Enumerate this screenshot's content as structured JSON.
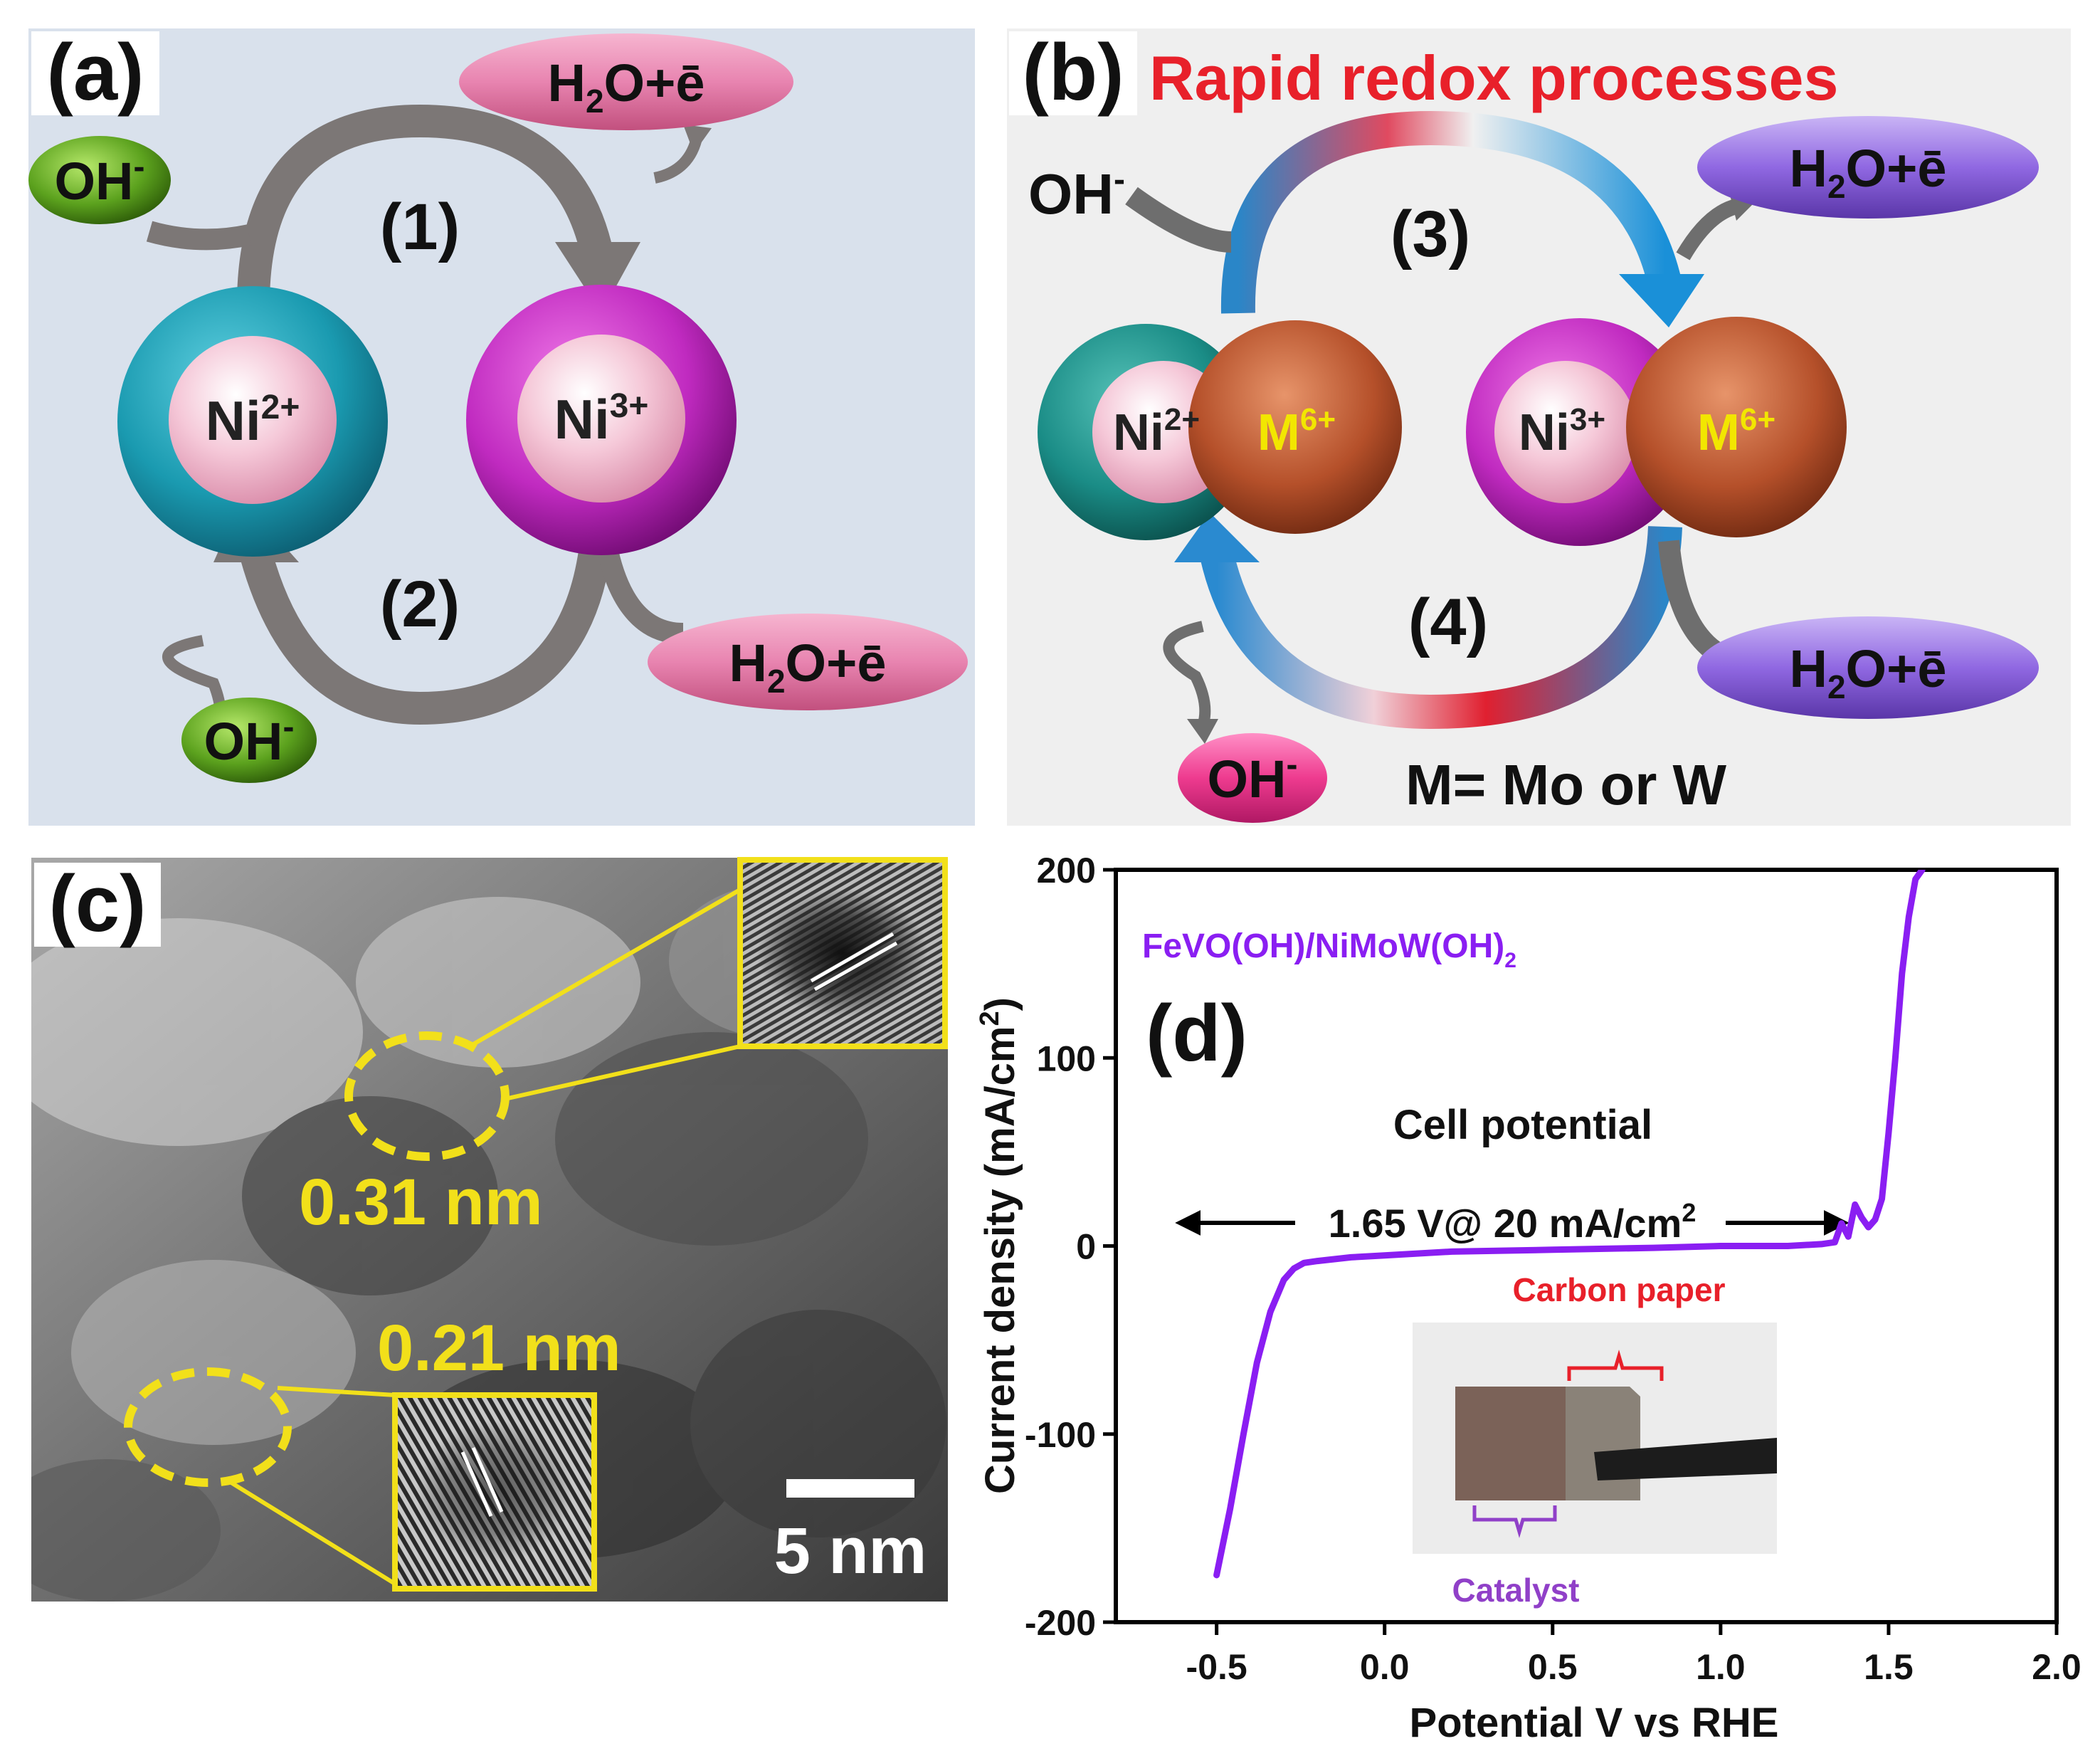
{
  "panel_a": {
    "label": "(a)",
    "ni2": {
      "el": "Ni",
      "charge": "2+"
    },
    "ni3": {
      "el": "Ni",
      "charge": "3+"
    },
    "step1": "(1)",
    "step2": "(2)",
    "oh_top": {
      "base": "OH",
      "sup": "-"
    },
    "oh_bottom": {
      "base": "OH",
      "sup": "-"
    },
    "h2o_top": {
      "pre": "H",
      "sub": "2",
      "post": "O+ē"
    },
    "h2o_bottom": {
      "pre": "H",
      "sub": "2",
      "post": "O+ē"
    }
  },
  "panel_b": {
    "label": "(b)",
    "title": "Rapid redox processes",
    "ni2": {
      "el": "Ni",
      "charge": "2+"
    },
    "ni3": {
      "el": "Ni",
      "charge": "3+"
    },
    "m_left": {
      "el": "M",
      "charge": "6+"
    },
    "m_right": {
      "el": "M",
      "charge": "6+"
    },
    "step3": "(3)",
    "step4": "(4)",
    "oh_top": {
      "base": "OH",
      "sup": "-"
    },
    "oh_bottom": {
      "base": "OH",
      "sup": "-"
    },
    "h2o_top": {
      "pre": "H",
      "sub": "2",
      "post": "O+ē"
    },
    "h2o_bottom": {
      "pre": "H",
      "sub": "2",
      "post": "O+ē"
    },
    "note": "M= Mo or W"
  },
  "panel_c": {
    "label": "(c)",
    "spacing_top": "0.31 nm",
    "spacing_bottom": "0.21 nm",
    "scale_bar": "5 nm"
  },
  "chart_data": {
    "type": "line",
    "panel_label": "(d)",
    "series_name": {
      "pre": "FeVO(OH)/NiMoW(OH)",
      "sub": "2"
    },
    "series_color": "#8a1ef2",
    "xlabel": "Potential V vs RHE",
    "ylabel": {
      "pre": "Current density (mA/cm",
      "sup": "2",
      "post": ")"
    },
    "xlim": [
      -0.8,
      2.0
    ],
    "ylim": [
      -200,
      200
    ],
    "xticks": [
      -0.5,
      0.0,
      0.5,
      1.0,
      1.5,
      2.0
    ],
    "xtick_labels": [
      "-0.5",
      "0.0",
      "0.5",
      "1.0",
      "1.5",
      "2.0"
    ],
    "yticks": [
      -200,
      -100,
      0,
      100,
      200
    ],
    "ytick_labels": [
      "-200",
      "-100",
      "0",
      "100",
      "200"
    ],
    "x": [
      -0.5,
      -0.46,
      -0.42,
      -0.38,
      -0.34,
      -0.3,
      -0.27,
      -0.24,
      -0.2,
      -0.1,
      0.0,
      0.2,
      0.5,
      0.8,
      1.0,
      1.2,
      1.3,
      1.34,
      1.36,
      1.38,
      1.4,
      1.42,
      1.44,
      1.46,
      1.48,
      1.5,
      1.52,
      1.54,
      1.56,
      1.58,
      1.6
    ],
    "y": [
      -175,
      -140,
      -100,
      -62,
      -35,
      -18,
      -12,
      -9,
      -8,
      -6,
      -5,
      -3,
      -2,
      -1,
      0,
      0,
      1,
      2,
      12,
      5,
      22,
      15,
      10,
      14,
      25,
      60,
      100,
      145,
      175,
      195,
      200
    ],
    "annotations": {
      "cell_potential_title": "Cell potential",
      "cell_potential_value": {
        "pre": "1.65 V@ 20 mA/cm",
        "sup": "2"
      },
      "carbon_paper": "Carbon paper",
      "catalyst": "Catalyst"
    }
  }
}
